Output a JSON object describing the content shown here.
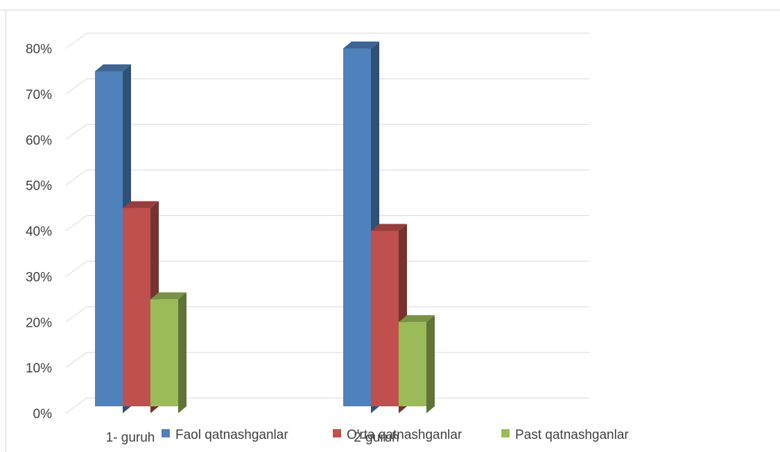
{
  "chart_data": {
    "type": "bar",
    "three_d": true,
    "categories": [
      "1- guruh",
      "2-guruh"
    ],
    "series": [
      {
        "name": "Faol qatnashganlar",
        "color": "#4F81BD",
        "values": [
          75,
          80
        ]
      },
      {
        "name": "O'rta qatnashganlar",
        "color": "#C0504D",
        "values": [
          45,
          40
        ]
      },
      {
        "name": "Past qatnashganlar",
        "color": "#9BBB59",
        "values": [
          25,
          20
        ]
      }
    ],
    "y_ticks": [
      "0%",
      "10%",
      "20%",
      "30%",
      "40%",
      "50%",
      "60%",
      "70%",
      "80%"
    ],
    "ylim": [
      0,
      80
    ],
    "y_unit": "%",
    "grid": true,
    "legend_position": "bottom"
  }
}
